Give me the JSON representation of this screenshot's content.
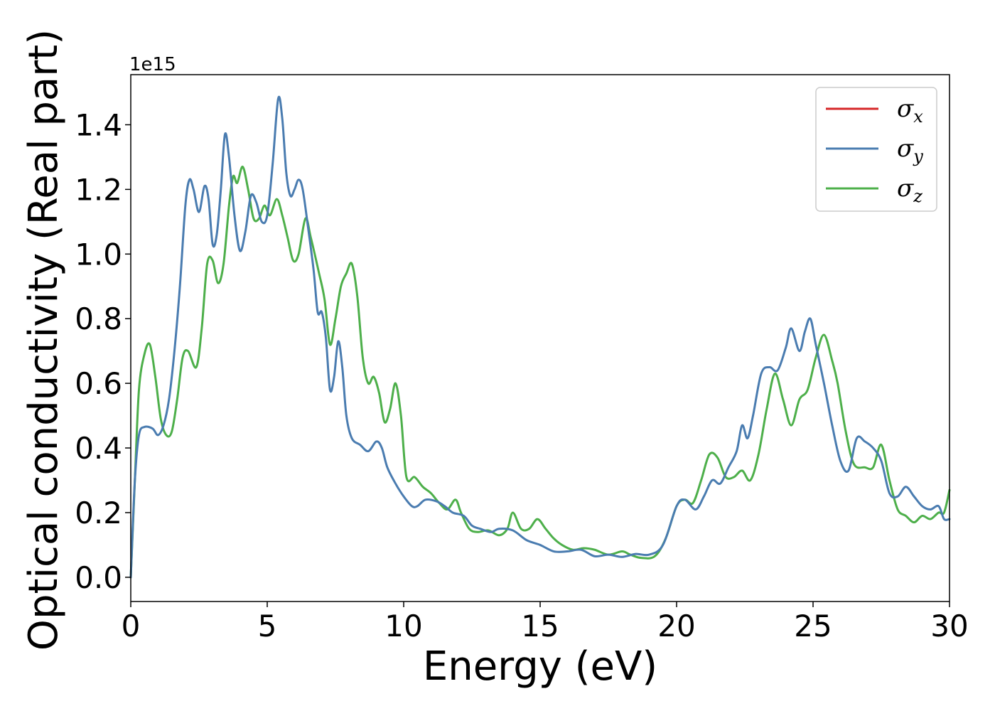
{
  "chart_data": {
    "type": "line",
    "xlabel": "Energy (eV)",
    "ylabel": "Optical conductivity (Real part)",
    "y_offset_label": "1e15",
    "xlim": [
      0,
      30
    ],
    "ylim": [
      -0.075,
      1.555
    ],
    "x_ticks": [
      0,
      5,
      10,
      15,
      20,
      25,
      30
    ],
    "x_tick_labels": [
      "0",
      "5",
      "10",
      "15",
      "20",
      "25",
      "30"
    ],
    "y_ticks": [
      0.0,
      0.2,
      0.4,
      0.6,
      0.8,
      1.0,
      1.2,
      1.4
    ],
    "y_tick_labels": [
      "0.0",
      "0.2",
      "0.4",
      "0.6",
      "0.8",
      "1.0",
      "1.2",
      "1.4"
    ],
    "grid": false,
    "legend_position": "top-right",
    "series": [
      {
        "name": "σ",
        "subscript": "x",
        "color": "#d62728",
        "points": []
      },
      {
        "name": "σ",
        "subscript": "y",
        "color": "#4a7cb0",
        "points": [
          [
            0.0,
            0.0
          ],
          [
            0.15,
            0.3
          ],
          [
            0.3,
            0.44
          ],
          [
            0.5,
            0.465
          ],
          [
            0.8,
            0.46
          ],
          [
            1.0,
            0.44
          ],
          [
            1.2,
            0.47
          ],
          [
            1.4,
            0.55
          ],
          [
            1.6,
            0.7
          ],
          [
            1.8,
            0.9
          ],
          [
            2.0,
            1.15
          ],
          [
            2.15,
            1.23
          ],
          [
            2.3,
            1.2
          ],
          [
            2.5,
            1.13
          ],
          [
            2.7,
            1.21
          ],
          [
            2.85,
            1.17
          ],
          [
            3.0,
            1.03
          ],
          [
            3.15,
            1.06
          ],
          [
            3.3,
            1.2
          ],
          [
            3.45,
            1.37
          ],
          [
            3.6,
            1.3
          ],
          [
            3.8,
            1.12
          ],
          [
            4.0,
            1.01
          ],
          [
            4.2,
            1.07
          ],
          [
            4.4,
            1.18
          ],
          [
            4.6,
            1.16
          ],
          [
            4.8,
            1.1
          ],
          [
            5.0,
            1.12
          ],
          [
            5.2,
            1.28
          ],
          [
            5.4,
            1.48
          ],
          [
            5.55,
            1.42
          ],
          [
            5.7,
            1.25
          ],
          [
            5.85,
            1.18
          ],
          [
            6.0,
            1.2
          ],
          [
            6.15,
            1.23
          ],
          [
            6.3,
            1.2
          ],
          [
            6.5,
            1.08
          ],
          [
            6.7,
            0.95
          ],
          [
            6.85,
            0.82
          ],
          [
            7.0,
            0.82
          ],
          [
            7.15,
            0.74
          ],
          [
            7.3,
            0.58
          ],
          [
            7.45,
            0.62
          ],
          [
            7.6,
            0.73
          ],
          [
            7.75,
            0.65
          ],
          [
            7.9,
            0.5
          ],
          [
            8.1,
            0.43
          ],
          [
            8.4,
            0.41
          ],
          [
            8.7,
            0.39
          ],
          [
            9.0,
            0.42
          ],
          [
            9.2,
            0.4
          ],
          [
            9.4,
            0.34
          ],
          [
            9.7,
            0.29
          ],
          [
            10.0,
            0.25
          ],
          [
            10.3,
            0.22
          ],
          [
            10.5,
            0.22
          ],
          [
            10.8,
            0.24
          ],
          [
            11.2,
            0.235
          ],
          [
            11.5,
            0.22
          ],
          [
            11.8,
            0.2
          ],
          [
            12.2,
            0.19
          ],
          [
            12.5,
            0.16
          ],
          [
            12.8,
            0.15
          ],
          [
            13.2,
            0.14
          ],
          [
            13.5,
            0.15
          ],
          [
            14.0,
            0.145
          ],
          [
            14.5,
            0.115
          ],
          [
            15.0,
            0.1
          ],
          [
            15.5,
            0.08
          ],
          [
            16.0,
            0.08
          ],
          [
            16.5,
            0.085
          ],
          [
            17.0,
            0.065
          ],
          [
            17.5,
            0.07
          ],
          [
            18.0,
            0.063
          ],
          [
            18.5,
            0.072
          ],
          [
            19.0,
            0.07
          ],
          [
            19.5,
            0.1
          ],
          [
            20.0,
            0.22
          ],
          [
            20.3,
            0.24
          ],
          [
            20.7,
            0.21
          ],
          [
            21.0,
            0.25
          ],
          [
            21.3,
            0.3
          ],
          [
            21.6,
            0.29
          ],
          [
            21.9,
            0.34
          ],
          [
            22.2,
            0.39
          ],
          [
            22.4,
            0.47
          ],
          [
            22.6,
            0.43
          ],
          [
            22.8,
            0.5
          ],
          [
            23.1,
            0.63
          ],
          [
            23.4,
            0.65
          ],
          [
            23.7,
            0.64
          ],
          [
            24.0,
            0.71
          ],
          [
            24.2,
            0.77
          ],
          [
            24.5,
            0.7
          ],
          [
            24.7,
            0.76
          ],
          [
            24.9,
            0.8
          ],
          [
            25.1,
            0.72
          ],
          [
            25.4,
            0.6
          ],
          [
            25.7,
            0.47
          ],
          [
            26.0,
            0.36
          ],
          [
            26.3,
            0.33
          ],
          [
            26.6,
            0.43
          ],
          [
            26.9,
            0.42
          ],
          [
            27.2,
            0.4
          ],
          [
            27.5,
            0.36
          ],
          [
            27.8,
            0.26
          ],
          [
            28.1,
            0.25
          ],
          [
            28.4,
            0.28
          ],
          [
            28.7,
            0.25
          ],
          [
            29.0,
            0.22
          ],
          [
            29.3,
            0.21
          ],
          [
            29.6,
            0.22
          ],
          [
            29.8,
            0.18
          ],
          [
            30.0,
            0.18
          ]
        ]
      },
      {
        "name": "σ",
        "subscript": "z",
        "color": "#4daf4a",
        "points": [
          [
            0.0,
            0.0
          ],
          [
            0.15,
            0.3
          ],
          [
            0.3,
            0.58
          ],
          [
            0.5,
            0.69
          ],
          [
            0.7,
            0.72
          ],
          [
            0.9,
            0.62
          ],
          [
            1.1,
            0.49
          ],
          [
            1.3,
            0.44
          ],
          [
            1.5,
            0.45
          ],
          [
            1.7,
            0.55
          ],
          [
            1.9,
            0.68
          ],
          [
            2.1,
            0.7
          ],
          [
            2.4,
            0.65
          ],
          [
            2.6,
            0.77
          ],
          [
            2.8,
            0.97
          ],
          [
            3.0,
            0.98
          ],
          [
            3.2,
            0.91
          ],
          [
            3.4,
            0.97
          ],
          [
            3.6,
            1.15
          ],
          [
            3.75,
            1.24
          ],
          [
            3.9,
            1.22
          ],
          [
            4.1,
            1.27
          ],
          [
            4.3,
            1.2
          ],
          [
            4.5,
            1.11
          ],
          [
            4.7,
            1.11
          ],
          [
            4.9,
            1.15
          ],
          [
            5.1,
            1.12
          ],
          [
            5.35,
            1.17
          ],
          [
            5.55,
            1.12
          ],
          [
            5.75,
            1.05
          ],
          [
            5.95,
            0.98
          ],
          [
            6.15,
            1.0
          ],
          [
            6.4,
            1.11
          ],
          [
            6.6,
            1.05
          ],
          [
            6.9,
            0.94
          ],
          [
            7.1,
            0.86
          ],
          [
            7.3,
            0.72
          ],
          [
            7.5,
            0.8
          ],
          [
            7.7,
            0.9
          ],
          [
            7.9,
            0.94
          ],
          [
            8.1,
            0.97
          ],
          [
            8.3,
            0.87
          ],
          [
            8.5,
            0.68
          ],
          [
            8.7,
            0.6
          ],
          [
            8.9,
            0.62
          ],
          [
            9.1,
            0.57
          ],
          [
            9.3,
            0.48
          ],
          [
            9.5,
            0.52
          ],
          [
            9.7,
            0.6
          ],
          [
            9.9,
            0.5
          ],
          [
            10.1,
            0.31
          ],
          [
            10.4,
            0.31
          ],
          [
            10.7,
            0.28
          ],
          [
            11.0,
            0.26
          ],
          [
            11.3,
            0.23
          ],
          [
            11.6,
            0.21
          ],
          [
            11.9,
            0.24
          ],
          [
            12.1,
            0.2
          ],
          [
            12.4,
            0.15
          ],
          [
            12.7,
            0.14
          ],
          [
            13.1,
            0.145
          ],
          [
            13.5,
            0.13
          ],
          [
            13.8,
            0.15
          ],
          [
            14.0,
            0.2
          ],
          [
            14.3,
            0.15
          ],
          [
            14.6,
            0.15
          ],
          [
            14.9,
            0.18
          ],
          [
            15.2,
            0.15
          ],
          [
            15.5,
            0.12
          ],
          [
            15.8,
            0.1
          ],
          [
            16.2,
            0.085
          ],
          [
            16.6,
            0.09
          ],
          [
            17.0,
            0.085
          ],
          [
            17.5,
            0.07
          ],
          [
            18.0,
            0.08
          ],
          [
            18.3,
            0.07
          ],
          [
            18.7,
            0.06
          ],
          [
            19.2,
            0.065
          ],
          [
            19.6,
            0.12
          ],
          [
            20.0,
            0.22
          ],
          [
            20.3,
            0.24
          ],
          [
            20.6,
            0.23
          ],
          [
            20.9,
            0.3
          ],
          [
            21.2,
            0.38
          ],
          [
            21.5,
            0.37
          ],
          [
            21.8,
            0.31
          ],
          [
            22.1,
            0.31
          ],
          [
            22.4,
            0.33
          ],
          [
            22.7,
            0.3
          ],
          [
            23.0,
            0.38
          ],
          [
            23.3,
            0.52
          ],
          [
            23.6,
            0.63
          ],
          [
            23.9,
            0.55
          ],
          [
            24.2,
            0.47
          ],
          [
            24.5,
            0.55
          ],
          [
            24.8,
            0.58
          ],
          [
            25.1,
            0.68
          ],
          [
            25.4,
            0.75
          ],
          [
            25.7,
            0.67
          ],
          [
            25.9,
            0.6
          ],
          [
            26.2,
            0.45
          ],
          [
            26.5,
            0.35
          ],
          [
            26.9,
            0.34
          ],
          [
            27.2,
            0.34
          ],
          [
            27.5,
            0.41
          ],
          [
            27.8,
            0.3
          ],
          [
            28.1,
            0.21
          ],
          [
            28.4,
            0.19
          ],
          [
            28.7,
            0.17
          ],
          [
            29.0,
            0.19
          ],
          [
            29.3,
            0.18
          ],
          [
            29.6,
            0.2
          ],
          [
            29.8,
            0.2
          ],
          [
            30.0,
            0.27
          ]
        ]
      }
    ]
  }
}
